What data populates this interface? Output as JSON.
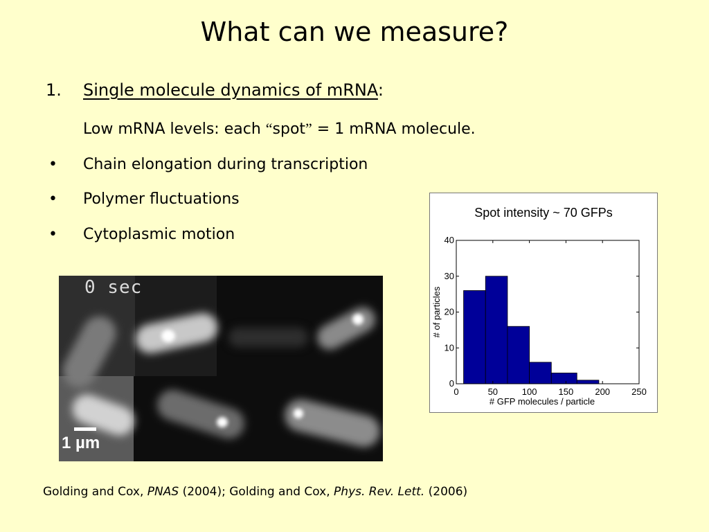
{
  "slide": {
    "title": "What can we measure?",
    "item1_number": "1.",
    "item1_heading": "Single molecule dynamics of mRNA",
    "item1_colon": ":",
    "subline_before": "Low mRNA levels: each ",
    "subline_open_quote": "“",
    "subline_word": "spot",
    "subline_close_quote": "”",
    "subline_after": " = 1 mRNA molecule.",
    "bullet_symbol": "•",
    "bullets": [
      "Chain elongation during transcription",
      "Polymer fluctuations",
      "Cytoplasmic motion"
    ]
  },
  "micrograph": {
    "time_label": "0 sec",
    "scale_label": "1 µm"
  },
  "citation": {
    "part1": "Golding and Cox, ",
    "journal1": "PNAS",
    "part2": " (2004); Golding and Cox, ",
    "journal2": "Phys. Rev. Lett.",
    "part3": " (2006)"
  },
  "chart_data": {
    "type": "bar",
    "title": "Spot intensity ~ 70 GFPs",
    "xlabel": "# GFP molecules / particle",
    "ylabel": "# of particles",
    "xlim": [
      0,
      250
    ],
    "ylim": [
      0,
      40
    ],
    "xticks": [
      "0",
      "50",
      "100",
      "150",
      "200",
      "250"
    ],
    "yticks": [
      "0",
      "10",
      "20",
      "30",
      "40"
    ],
    "bins": [
      {
        "x0": 10,
        "x1": 40,
        "value": 26
      },
      {
        "x0": 40,
        "x1": 70,
        "value": 30
      },
      {
        "x0": 70,
        "x1": 100,
        "value": 16
      },
      {
        "x0": 100,
        "x1": 130,
        "value": 6
      },
      {
        "x0": 130,
        "x1": 165,
        "value": 3
      },
      {
        "x0": 165,
        "x1": 195,
        "value": 1
      }
    ],
    "bar_color": "#000099"
  }
}
